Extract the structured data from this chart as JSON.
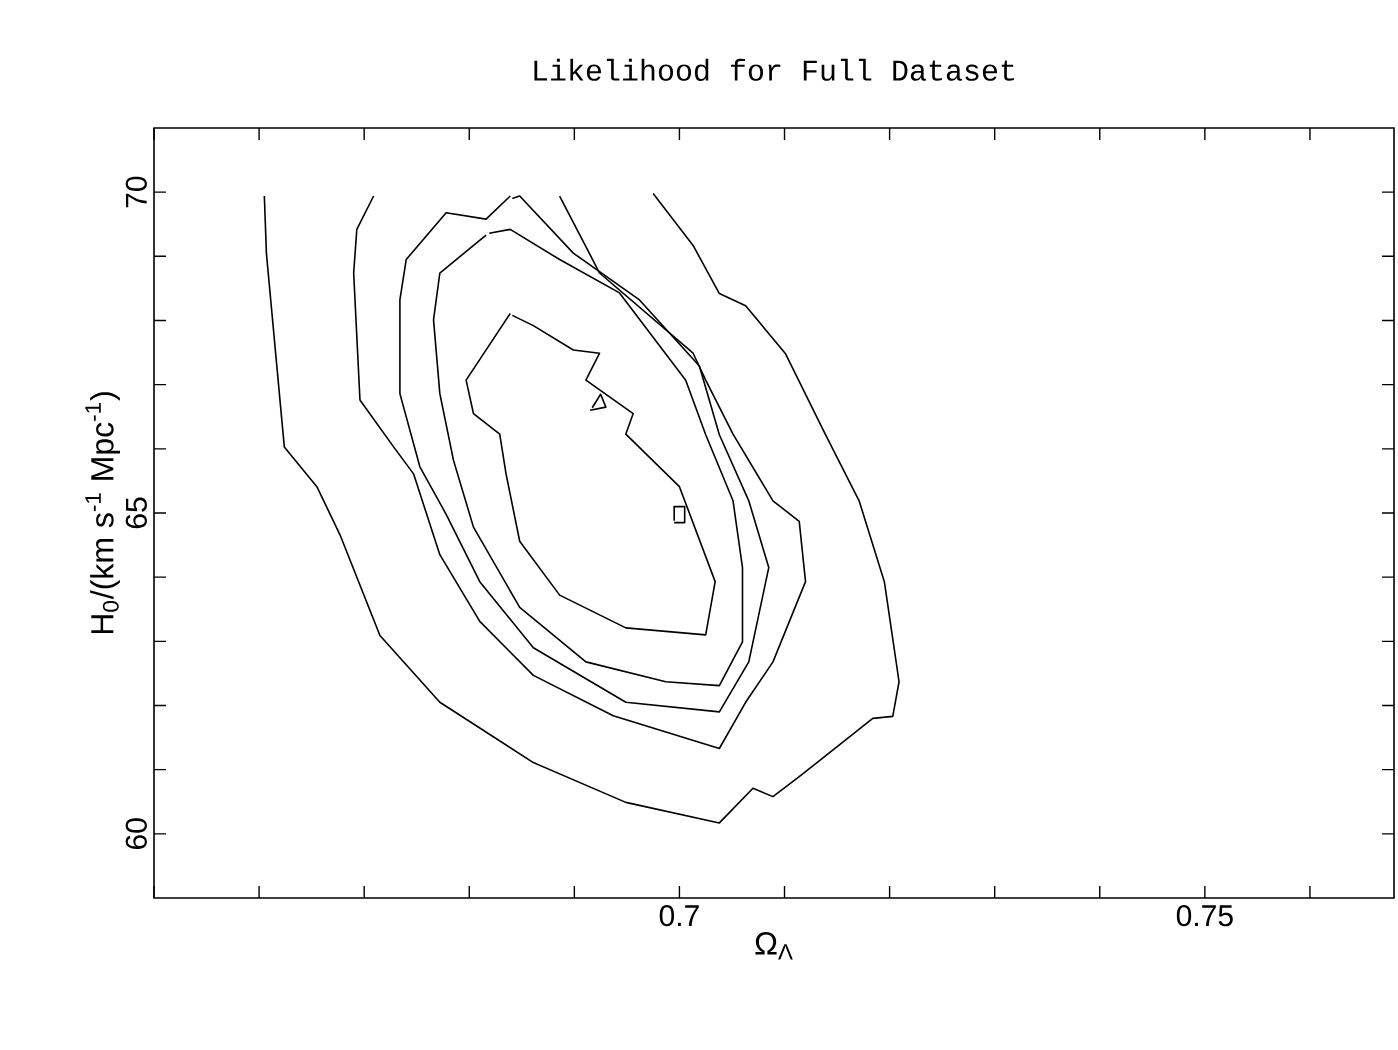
{
  "chart_data": {
    "type": "line",
    "title": "Likelihood for Full Dataset",
    "xlabel": "Ω$_{Λ}$",
    "ylabel": "H$_{0}$/(km s$^{-1}$ Mpc$^{-1}$)",
    "xlim": [
      0.65,
      0.768
    ],
    "ylim": [
      59,
      71
    ],
    "xticks": [
      {
        "value": 0.65,
        "label": null
      },
      {
        "value": 0.66,
        "label": null
      },
      {
        "value": 0.67,
        "label": null
      },
      {
        "value": 0.68,
        "label": null
      },
      {
        "value": 0.69,
        "label": null
      },
      0.7,
      {
        "value": 0.71,
        "label": null
      },
      {
        "value": 0.72,
        "label": null
      },
      {
        "value": 0.73,
        "label": null
      },
      {
        "value": 0.74,
        "label": null
      },
      0.75,
      {
        "value": 0.76,
        "label": null
      }
    ],
    "yticks": [
      60,
      {
        "value": 61,
        "label": null
      },
      {
        "value": 62,
        "label": null
      },
      {
        "value": 63,
        "label": null
      },
      {
        "value": 64,
        "label": null
      },
      65,
      {
        "value": 66,
        "label": null
      },
      {
        "value": 67,
        "label": null
      },
      {
        "value": 68,
        "label": null
      },
      {
        "value": 69,
        "label": null
      },
      70
    ],
    "grid": false,
    "marker": "none",
    "line_style": "solid",
    "series": [
      {
        "color": "#000000",
        "x": [
          0.6605,
          0.6607,
          0.6624,
          0.6655,
          0.6677,
          0.6715,
          0.6772,
          0.6861,
          0.6949,
          0.7038,
          0.707,
          0.7089,
          0.7114,
          0.7184,
          0.7203,
          0.7209,
          0.7195,
          0.7171,
          0.7139,
          0.7101,
          0.7063,
          0.7038,
          0.7013,
          0.6975
        ],
        "values": [
          69.94,
          69.04,
          66.03,
          65.41,
          64.66,
          63.09,
          62.05,
          61.11,
          60.49,
          60.17,
          60.71,
          60.58,
          60.89,
          61.8,
          61.83,
          62.37,
          63.93,
          65.19,
          66.22,
          67.48,
          68.23,
          68.42,
          69.17,
          69.98
        ]
      },
      {
        "color": "#000000",
        "x": [
          0.6709,
          0.6693,
          0.669,
          0.6696,
          0.6728,
          0.6747,
          0.6772,
          0.681,
          0.6861,
          0.6937,
          0.7038,
          0.7063,
          0.7089,
          0.712,
          0.7114,
          0.7089,
          0.7051,
          0.7025,
          0.7013,
          0.6924,
          0.6886
        ],
        "values": [
          69.94,
          69.42,
          68.74,
          66.76,
          66.03,
          65.61,
          64.35,
          63.31,
          62.47,
          61.84,
          61.33,
          62.05,
          62.68,
          63.93,
          64.87,
          65.19,
          66.23,
          67.07,
          67.49,
          68.74,
          69.94
        ]
      },
      {
        "color": "#000000",
        "x": [
          0.6839,
          0.6816,
          0.6778,
          0.674,
          0.6734,
          0.6734,
          0.6753,
          0.6778,
          0.681,
          0.6861,
          0.6949,
          0.7038,
          0.7066,
          0.7085,
          0.7066,
          0.7038,
          0.7019,
          0.6962,
          0.6899,
          0.6848,
          0.6841
        ],
        "values": [
          69.94,
          69.58,
          69.68,
          68.95,
          68.32,
          66.86,
          65.72,
          64.98,
          63.93,
          62.9,
          62.05,
          61.9,
          62.68,
          64.15,
          65.19,
          66.22,
          67.29,
          68.32,
          69.05,
          69.94,
          69.9
        ]
      },
      {
        "color": "#000000",
        "x": [
          0.6816,
          0.6772,
          0.6766,
          0.6772,
          0.6785,
          0.6804,
          0.6848,
          0.6911,
          0.6987,
          0.7038,
          0.706,
          0.706,
          0.7051,
          0.7025,
          0.7006,
          0.6943,
          0.6886,
          0.6839,
          0.6819
        ],
        "values": [
          69.33,
          68.74,
          68.01,
          66.86,
          65.82,
          64.78,
          63.53,
          62.68,
          62.37,
          62.31,
          62.99,
          64.15,
          65.19,
          66.22,
          67.07,
          68.43,
          68.95,
          69.42,
          69.36
        ]
      },
      {
        "color": "#000000",
        "x": [
          0.6839,
          0.6797,
          0.6804,
          0.6829,
          0.6835,
          0.6848,
          0.6886,
          0.6949,
          0.7025,
          0.7034,
          0.7,
          0.6949,
          0.6956,
          0.6911,
          0.6924,
          0.6899,
          0.6861,
          0.6841
        ],
        "values": [
          68.11,
          67.07,
          66.55,
          66.23,
          65.61,
          64.56,
          63.72,
          63.21,
          63.1,
          63.93,
          65.41,
          66.23,
          66.55,
          67.07,
          67.49,
          67.54,
          67.92,
          68.08
        ]
      },
      {
        "color": "#000000",
        "x": [
          0.6995,
          0.7005,
          0.7005,
          0.6995,
          0.6995
        ],
        "values": [
          64.85,
          64.85,
          65.1,
          65.1,
          64.88
        ]
      },
      {
        "color": "#000000",
        "x": [
          0.6915,
          0.693,
          0.6925,
          0.6917
        ],
        "values": [
          66.6,
          66.65,
          66.85,
          66.64
        ]
      }
    ]
  }
}
